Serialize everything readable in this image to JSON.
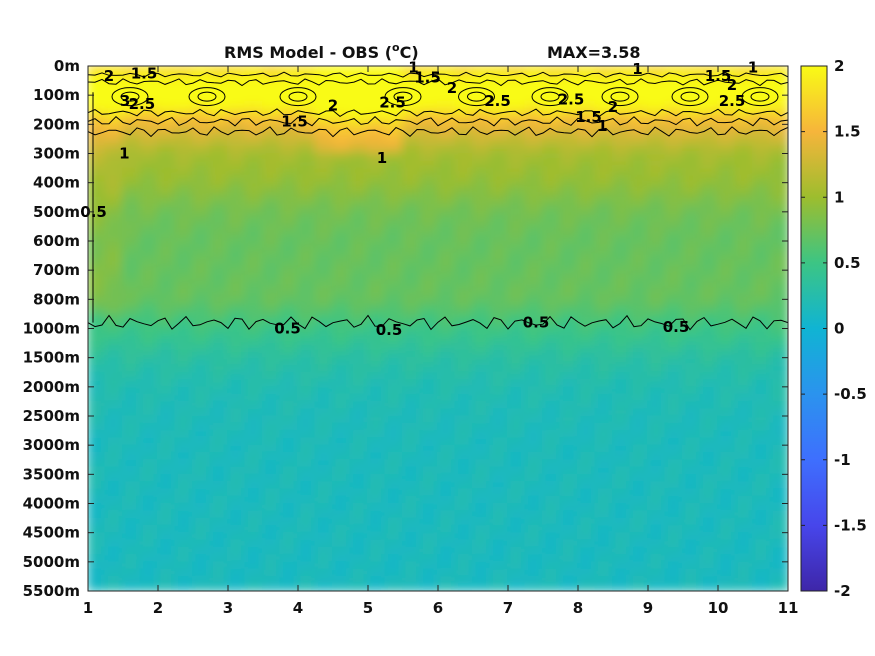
{
  "chart_data": {
    "type": "heatmap",
    "title": "RMS Model - OBS (",
    "title_unit": "C)",
    "title_degree": "o",
    "max_label": "MAX=3.58",
    "x_ticks": [
      "1",
      "2",
      "3",
      "4",
      "5",
      "6",
      "7",
      "8",
      "9",
      "10",
      "11"
    ],
    "xlim": [
      1,
      11
    ],
    "y_ticks": [
      "0m",
      "100m",
      "200m",
      "300m",
      "400m",
      "500m",
      "600m",
      "700m",
      "800m",
      "1000m",
      "1500m",
      "2000m",
      "2500m",
      "3000m",
      "3500m",
      "4000m",
      "4500m",
      "5000m",
      "5500m"
    ],
    "colorbar": {
      "range": [
        -2,
        2
      ],
      "ticks": [
        "2",
        "1.5",
        "1",
        "0.5",
        "0",
        "-0.5",
        "-1",
        "-1.5",
        "-2"
      ],
      "colormap": "parula"
    },
    "field_profile_by_depth": [
      1.7,
      2.3,
      1.45,
      1.05,
      0.95,
      0.78,
      0.72,
      0.72,
      0.72,
      0.5,
      0.32,
      0.22,
      0.18,
      0.16,
      0.16,
      0.15,
      0.15,
      0.14,
      0.14
    ],
    "contour_levels": [
      0.5,
      1,
      1.5,
      2,
      2.5,
      3
    ],
    "contour_labels": [
      {
        "text": "2",
        "x": 1.3,
        "y": 0.35
      },
      {
        "text": "1.5",
        "x": 1.8,
        "y": 0.25
      },
      {
        "text": "3",
        "x": 1.53,
        "y": 1.2
      },
      {
        "text": "2.5",
        "x": 1.77,
        "y": 1.3
      },
      {
        "text": "1.5",
        "x": 3.95,
        "y": 1.9
      },
      {
        "text": "2",
        "x": 4.5,
        "y": 1.35
      },
      {
        "text": "2.5",
        "x": 5.35,
        "y": 1.25
      },
      {
        "text": "1",
        "x": 5.65,
        "y": 0.05
      },
      {
        "text": "1.5",
        "x": 5.85,
        "y": 0.4
      },
      {
        "text": "2",
        "x": 6.2,
        "y": 0.75
      },
      {
        "text": "2.5",
        "x": 6.85,
        "y": 1.2
      },
      {
        "text": "2.5",
        "x": 7.9,
        "y": 1.15
      },
      {
        "text": "2",
        "x": 8.5,
        "y": 1.4
      },
      {
        "text": "1.5",
        "x": 8.15,
        "y": 1.75
      },
      {
        "text": "1",
        "x": 8.35,
        "y": 2.05
      },
      {
        "text": "1",
        "x": 8.85,
        "y": 0.1
      },
      {
        "text": "1.5",
        "x": 10.0,
        "y": 0.35
      },
      {
        "text": "2",
        "x": 10.2,
        "y": 0.65
      },
      {
        "text": "2.5",
        "x": 10.2,
        "y": 1.2
      },
      {
        "text": "1",
        "x": 10.5,
        "y": 0.05
      },
      {
        "text": "1",
        "x": 1.52,
        "y": 3.0
      },
      {
        "text": "1",
        "x": 5.2,
        "y": 3.15
      },
      {
        "text": "0.5",
        "x": 1.08,
        "y": 5.0
      },
      {
        "text": "0.5",
        "x": 3.85,
        "y": 9.0
      },
      {
        "text": "0.5",
        "x": 5.3,
        "y": 9.05
      },
      {
        "text": "0.5",
        "x": 7.4,
        "y": 8.8
      },
      {
        "text": "0.5",
        "x": 9.4,
        "y": 8.95
      }
    ]
  }
}
